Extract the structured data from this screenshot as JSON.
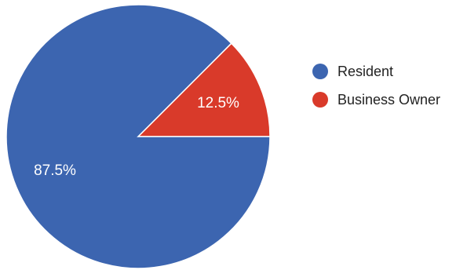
{
  "chart_data": {
    "type": "pie",
    "slices": [
      {
        "label": "Resident",
        "value": 87.5,
        "value_label": "87.5%",
        "color": "#3c65b0"
      },
      {
        "label": "Business Owner",
        "value": 12.5,
        "value_label": "12.5%",
        "color": "#d93a2a"
      }
    ],
    "legend_position": "right",
    "title": ""
  }
}
